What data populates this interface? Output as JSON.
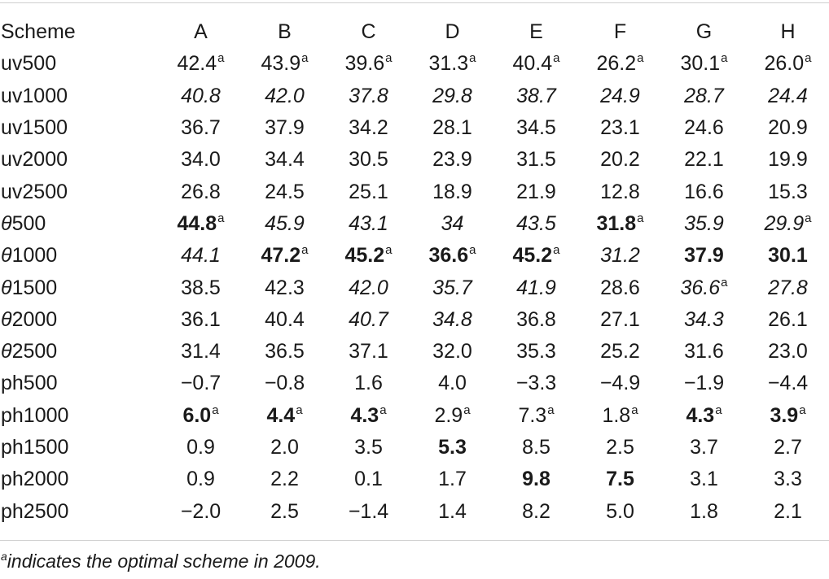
{
  "table": {
    "headers": [
      "Scheme",
      "A",
      "B",
      "C",
      "D",
      "E",
      "F",
      "G",
      "H"
    ],
    "rows": [
      {
        "label": "uv500",
        "cells": [
          {
            "v": "42.4",
            "sup": "a"
          },
          {
            "v": "43.9",
            "sup": "a"
          },
          {
            "v": "39.6",
            "sup": "a"
          },
          {
            "v": "31.3",
            "sup": "a"
          },
          {
            "v": "40.4",
            "sup": "a"
          },
          {
            "v": "26.2",
            "sup": "a"
          },
          {
            "v": "30.1",
            "sup": "a"
          },
          {
            "v": "26.0",
            "sup": "a"
          }
        ]
      },
      {
        "label": "uv1000",
        "cells": [
          {
            "v": "40.8",
            "i": true
          },
          {
            "v": "42.0",
            "i": true
          },
          {
            "v": "37.8",
            "i": true
          },
          {
            "v": "29.8",
            "i": true
          },
          {
            "v": "38.7",
            "i": true
          },
          {
            "v": "24.9",
            "i": true
          },
          {
            "v": "28.7",
            "i": true
          },
          {
            "v": "24.4",
            "i": true
          }
        ]
      },
      {
        "label": "uv1500",
        "cells": [
          {
            "v": "36.7"
          },
          {
            "v": "37.9"
          },
          {
            "v": "34.2"
          },
          {
            "v": "28.1"
          },
          {
            "v": "34.5"
          },
          {
            "v": "23.1"
          },
          {
            "v": "24.6"
          },
          {
            "v": "20.9"
          }
        ]
      },
      {
        "label": "uv2000",
        "cells": [
          {
            "v": "34.0"
          },
          {
            "v": "34.4"
          },
          {
            "v": "30.5"
          },
          {
            "v": "23.9"
          },
          {
            "v": "31.5"
          },
          {
            "v": "20.2"
          },
          {
            "v": "22.1"
          },
          {
            "v": "19.9"
          }
        ]
      },
      {
        "label": "uv2500",
        "cells": [
          {
            "v": "26.8"
          },
          {
            "v": "24.5"
          },
          {
            "v": "25.1"
          },
          {
            "v": "18.9"
          },
          {
            "v": "21.9"
          },
          {
            "v": "12.8"
          },
          {
            "v": "16.6"
          },
          {
            "v": "15.3"
          }
        ]
      },
      {
        "label": "θ500",
        "cells": [
          {
            "v": "44.8",
            "b": true,
            "sup": "a"
          },
          {
            "v": "45.9",
            "i": true
          },
          {
            "v": "43.1",
            "i": true
          },
          {
            "v": "34",
            "i": true
          },
          {
            "v": "43.5",
            "i": true
          },
          {
            "v": "31.8",
            "b": true,
            "sup": "a"
          },
          {
            "v": "35.9",
            "i": true
          },
          {
            "v": "29.9",
            "i": true,
            "sup": "a"
          }
        ]
      },
      {
        "label": "θ1000",
        "cells": [
          {
            "v": "44.1",
            "i": true
          },
          {
            "v": "47.2",
            "b": true,
            "sup": "a"
          },
          {
            "v": "45.2",
            "b": true,
            "sup": "a"
          },
          {
            "v": "36.6",
            "b": true,
            "sup": "a"
          },
          {
            "v": "45.2",
            "b": true,
            "sup": "a"
          },
          {
            "v": "31.2",
            "i": true
          },
          {
            "v": "37.9",
            "b": true
          },
          {
            "v": "30.1",
            "b": true
          }
        ]
      },
      {
        "label": "θ1500",
        "cells": [
          {
            "v": "38.5"
          },
          {
            "v": "42.3"
          },
          {
            "v": "42.0",
            "i": true
          },
          {
            "v": "35.7",
            "i": true
          },
          {
            "v": "41.9",
            "i": true
          },
          {
            "v": "28.6"
          },
          {
            "v": "36.6",
            "i": true,
            "sup": "a"
          },
          {
            "v": "27.8",
            "i": true
          }
        ]
      },
      {
        "label": "θ2000",
        "cells": [
          {
            "v": "36.1"
          },
          {
            "v": "40.4"
          },
          {
            "v": "40.7",
            "i": true
          },
          {
            "v": "34.8",
            "i": true
          },
          {
            "v": "36.8"
          },
          {
            "v": "27.1"
          },
          {
            "v": "34.3",
            "i": true
          },
          {
            "v": "26.1"
          }
        ]
      },
      {
        "label": "θ2500",
        "cells": [
          {
            "v": "31.4"
          },
          {
            "v": "36.5"
          },
          {
            "v": "37.1"
          },
          {
            "v": "32.0"
          },
          {
            "v": "35.3"
          },
          {
            "v": "25.2"
          },
          {
            "v": "31.6"
          },
          {
            "v": "23.0"
          }
        ]
      },
      {
        "label": "ph500",
        "cells": [
          {
            "v": "−0.7"
          },
          {
            "v": "−0.8"
          },
          {
            "v": "1.6"
          },
          {
            "v": "4.0"
          },
          {
            "v": "−3.3"
          },
          {
            "v": "−4.9"
          },
          {
            "v": "−1.9"
          },
          {
            "v": "−4.4"
          }
        ]
      },
      {
        "label": "ph1000",
        "cells": [
          {
            "v": "6.0",
            "b": true,
            "sup": "a"
          },
          {
            "v": "4.4",
            "b": true,
            "sup": "a"
          },
          {
            "v": "4.3",
            "b": true,
            "sup": "a"
          },
          {
            "v": "2.9",
            "sup": "a"
          },
          {
            "v": "7.3",
            "sup": "a"
          },
          {
            "v": "1.8",
            "sup": "a"
          },
          {
            "v": "4.3",
            "b": true,
            "sup": "a"
          },
          {
            "v": "3.9",
            "b": true,
            "sup": "a"
          }
        ]
      },
      {
        "label": "ph1500",
        "cells": [
          {
            "v": "0.9"
          },
          {
            "v": "2.0"
          },
          {
            "v": "3.5"
          },
          {
            "v": "5.3",
            "b": true
          },
          {
            "v": "8.5"
          },
          {
            "v": "2.5"
          },
          {
            "v": "3.7"
          },
          {
            "v": "2.7"
          }
        ]
      },
      {
        "label": "ph2000",
        "cells": [
          {
            "v": "0.9"
          },
          {
            "v": "2.2"
          },
          {
            "v": "0.1"
          },
          {
            "v": "1.7"
          },
          {
            "v": "9.8",
            "b": true
          },
          {
            "v": "7.5",
            "b": true
          },
          {
            "v": "3.1"
          },
          {
            "v": "3.3"
          }
        ]
      },
      {
        "label": "ph2500",
        "cells": [
          {
            "v": "−2.0"
          },
          {
            "v": "2.5"
          },
          {
            "v": "−1.4"
          },
          {
            "v": "1.4"
          },
          {
            "v": "8.2"
          },
          {
            "v": "5.0"
          },
          {
            "v": "1.8"
          },
          {
            "v": "2.1"
          }
        ]
      }
    ]
  },
  "footnote": {
    "marker": "a",
    "text": "indicates the optimal scheme in 2009."
  }
}
